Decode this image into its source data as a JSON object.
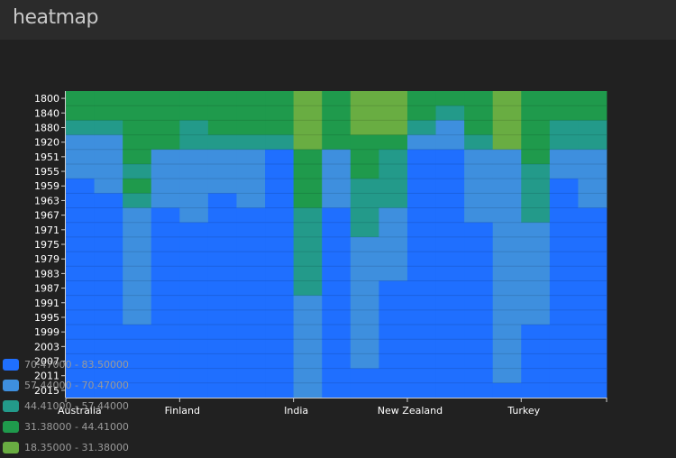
{
  "app": {
    "title": "heatmap"
  },
  "legend": {
    "items": [
      {
        "label": "70.47000 - 83.50000",
        "color": "#1f6fff"
      },
      {
        "label": "57.44000 - 70.47000",
        "color": "#3e8fde"
      },
      {
        "label": "44.41000 - 57.44000",
        "color": "#239a8a"
      },
      {
        "label": "31.38000 - 44.41000",
        "color": "#1f9a4c"
      },
      {
        "label": "18.35000 - 31.38000",
        "color": "#69ad42"
      }
    ]
  },
  "chart_data": {
    "type": "heatmap",
    "title": "heatmap",
    "xlabel": "",
    "ylabel": "",
    "x_tick_labels": [
      "Australia",
      "Finland",
      "India",
      "New Zealand",
      "Turkey"
    ],
    "y_tick_labels": [
      "1800",
      "1840",
      "1880",
      "1920",
      "1951",
      "1955",
      "1959",
      "1963",
      "1967",
      "1971",
      "1975",
      "1979",
      "1983",
      "1987",
      "1991",
      "1995",
      "1999",
      "2003",
      "2007",
      "2011",
      "2015"
    ],
    "columns": 19,
    "rows": 21,
    "bins": [
      {
        "min": 70.47,
        "max": 83.5,
        "color": "#1f6fff"
      },
      {
        "min": 57.44,
        "max": 70.47,
        "color": "#3e8fde"
      },
      {
        "min": 44.41,
        "max": 57.44,
        "color": "#239a8a"
      },
      {
        "min": 31.38,
        "max": 44.41,
        "color": "#1f9a4c"
      },
      {
        "min": 18.35,
        "max": 31.38,
        "color": "#69ad42"
      }
    ],
    "bin_index_by_column": [
      [
        3,
        3,
        2,
        1,
        1,
        1,
        0,
        0,
        0,
        0,
        0,
        0,
        0,
        0,
        0,
        0,
        0,
        0,
        0,
        0,
        0
      ],
      [
        3,
        3,
        2,
        1,
        1,
        1,
        1,
        0,
        0,
        0,
        0,
        0,
        0,
        0,
        0,
        0,
        0,
        0,
        0,
        0,
        0
      ],
      [
        3,
        3,
        3,
        3,
        3,
        2,
        3,
        2,
        1,
        1,
        1,
        1,
        1,
        1,
        1,
        1,
        0,
        0,
        0,
        0,
        0
      ],
      [
        3,
        3,
        3,
        3,
        1,
        1,
        1,
        1,
        0,
        0,
        0,
        0,
        0,
        0,
        0,
        0,
        0,
        0,
        0,
        0,
        0
      ],
      [
        3,
        3,
        2,
        2,
        1,
        1,
        1,
        1,
        1,
        0,
        0,
        0,
        0,
        0,
        0,
        0,
        0,
        0,
        0,
        0,
        0
      ],
      [
        3,
        3,
        3,
        2,
        1,
        1,
        1,
        0,
        0,
        0,
        0,
        0,
        0,
        0,
        0,
        0,
        0,
        0,
        0,
        0,
        0
      ],
      [
        3,
        3,
        3,
        2,
        1,
        1,
        1,
        1,
        0,
        0,
        0,
        0,
        0,
        0,
        0,
        0,
        0,
        0,
        0,
        0,
        0
      ],
      [
        3,
        3,
        3,
        2,
        0,
        0,
        0,
        0,
        0,
        0,
        0,
        0,
        0,
        0,
        0,
        0,
        0,
        0,
        0,
        0,
        0
      ],
      [
        4,
        4,
        4,
        4,
        3,
        3,
        3,
        3,
        2,
        2,
        2,
        2,
        2,
        2,
        1,
        1,
        1,
        1,
        1,
        1,
        1
      ],
      [
        3,
        3,
        3,
        3,
        1,
        1,
        1,
        1,
        0,
        0,
        0,
        0,
        0,
        0,
        0,
        0,
        0,
        0,
        0,
        0,
        0
      ],
      [
        4,
        4,
        4,
        3,
        3,
        3,
        2,
        2,
        2,
        2,
        1,
        1,
        1,
        1,
        1,
        1,
        1,
        1,
        1,
        0,
        0
      ],
      [
        4,
        4,
        4,
        3,
        2,
        2,
        2,
        2,
        1,
        1,
        1,
        1,
        1,
        0,
        0,
        0,
        0,
        0,
        0,
        0,
        0
      ],
      [
        3,
        3,
        2,
        1,
        0,
        0,
        0,
        0,
        0,
        0,
        0,
        0,
        0,
        0,
        0,
        0,
        0,
        0,
        0,
        0,
        0
      ],
      [
        3,
        2,
        1,
        1,
        0,
        0,
        0,
        0,
        0,
        0,
        0,
        0,
        0,
        0,
        0,
        0,
        0,
        0,
        0,
        0,
        0
      ],
      [
        3,
        3,
        3,
        2,
        1,
        1,
        1,
        1,
        1,
        0,
        0,
        0,
        0,
        0,
        0,
        0,
        0,
        0,
        0,
        0,
        0
      ],
      [
        4,
        4,
        4,
        4,
        1,
        1,
        1,
        1,
        1,
        1,
        1,
        1,
        1,
        1,
        1,
        1,
        1,
        1,
        1,
        1,
        0
      ],
      [
        3,
        3,
        3,
        3,
        3,
        2,
        2,
        2,
        2,
        1,
        1,
        1,
        1,
        1,
        1,
        1,
        0,
        0,
        0,
        0,
        0
      ],
      [
        3,
        3,
        2,
        2,
        1,
        1,
        0,
        0,
        0,
        0,
        0,
        0,
        0,
        0,
        0,
        0,
        0,
        0,
        0,
        0,
        0
      ],
      [
        3,
        3,
        2,
        2,
        1,
        1,
        1,
        1,
        0,
        0,
        0,
        0,
        0,
        0,
        0,
        0,
        0,
        0,
        0,
        0,
        0
      ]
    ],
    "legend_position": "bottom-left",
    "grid": true
  }
}
